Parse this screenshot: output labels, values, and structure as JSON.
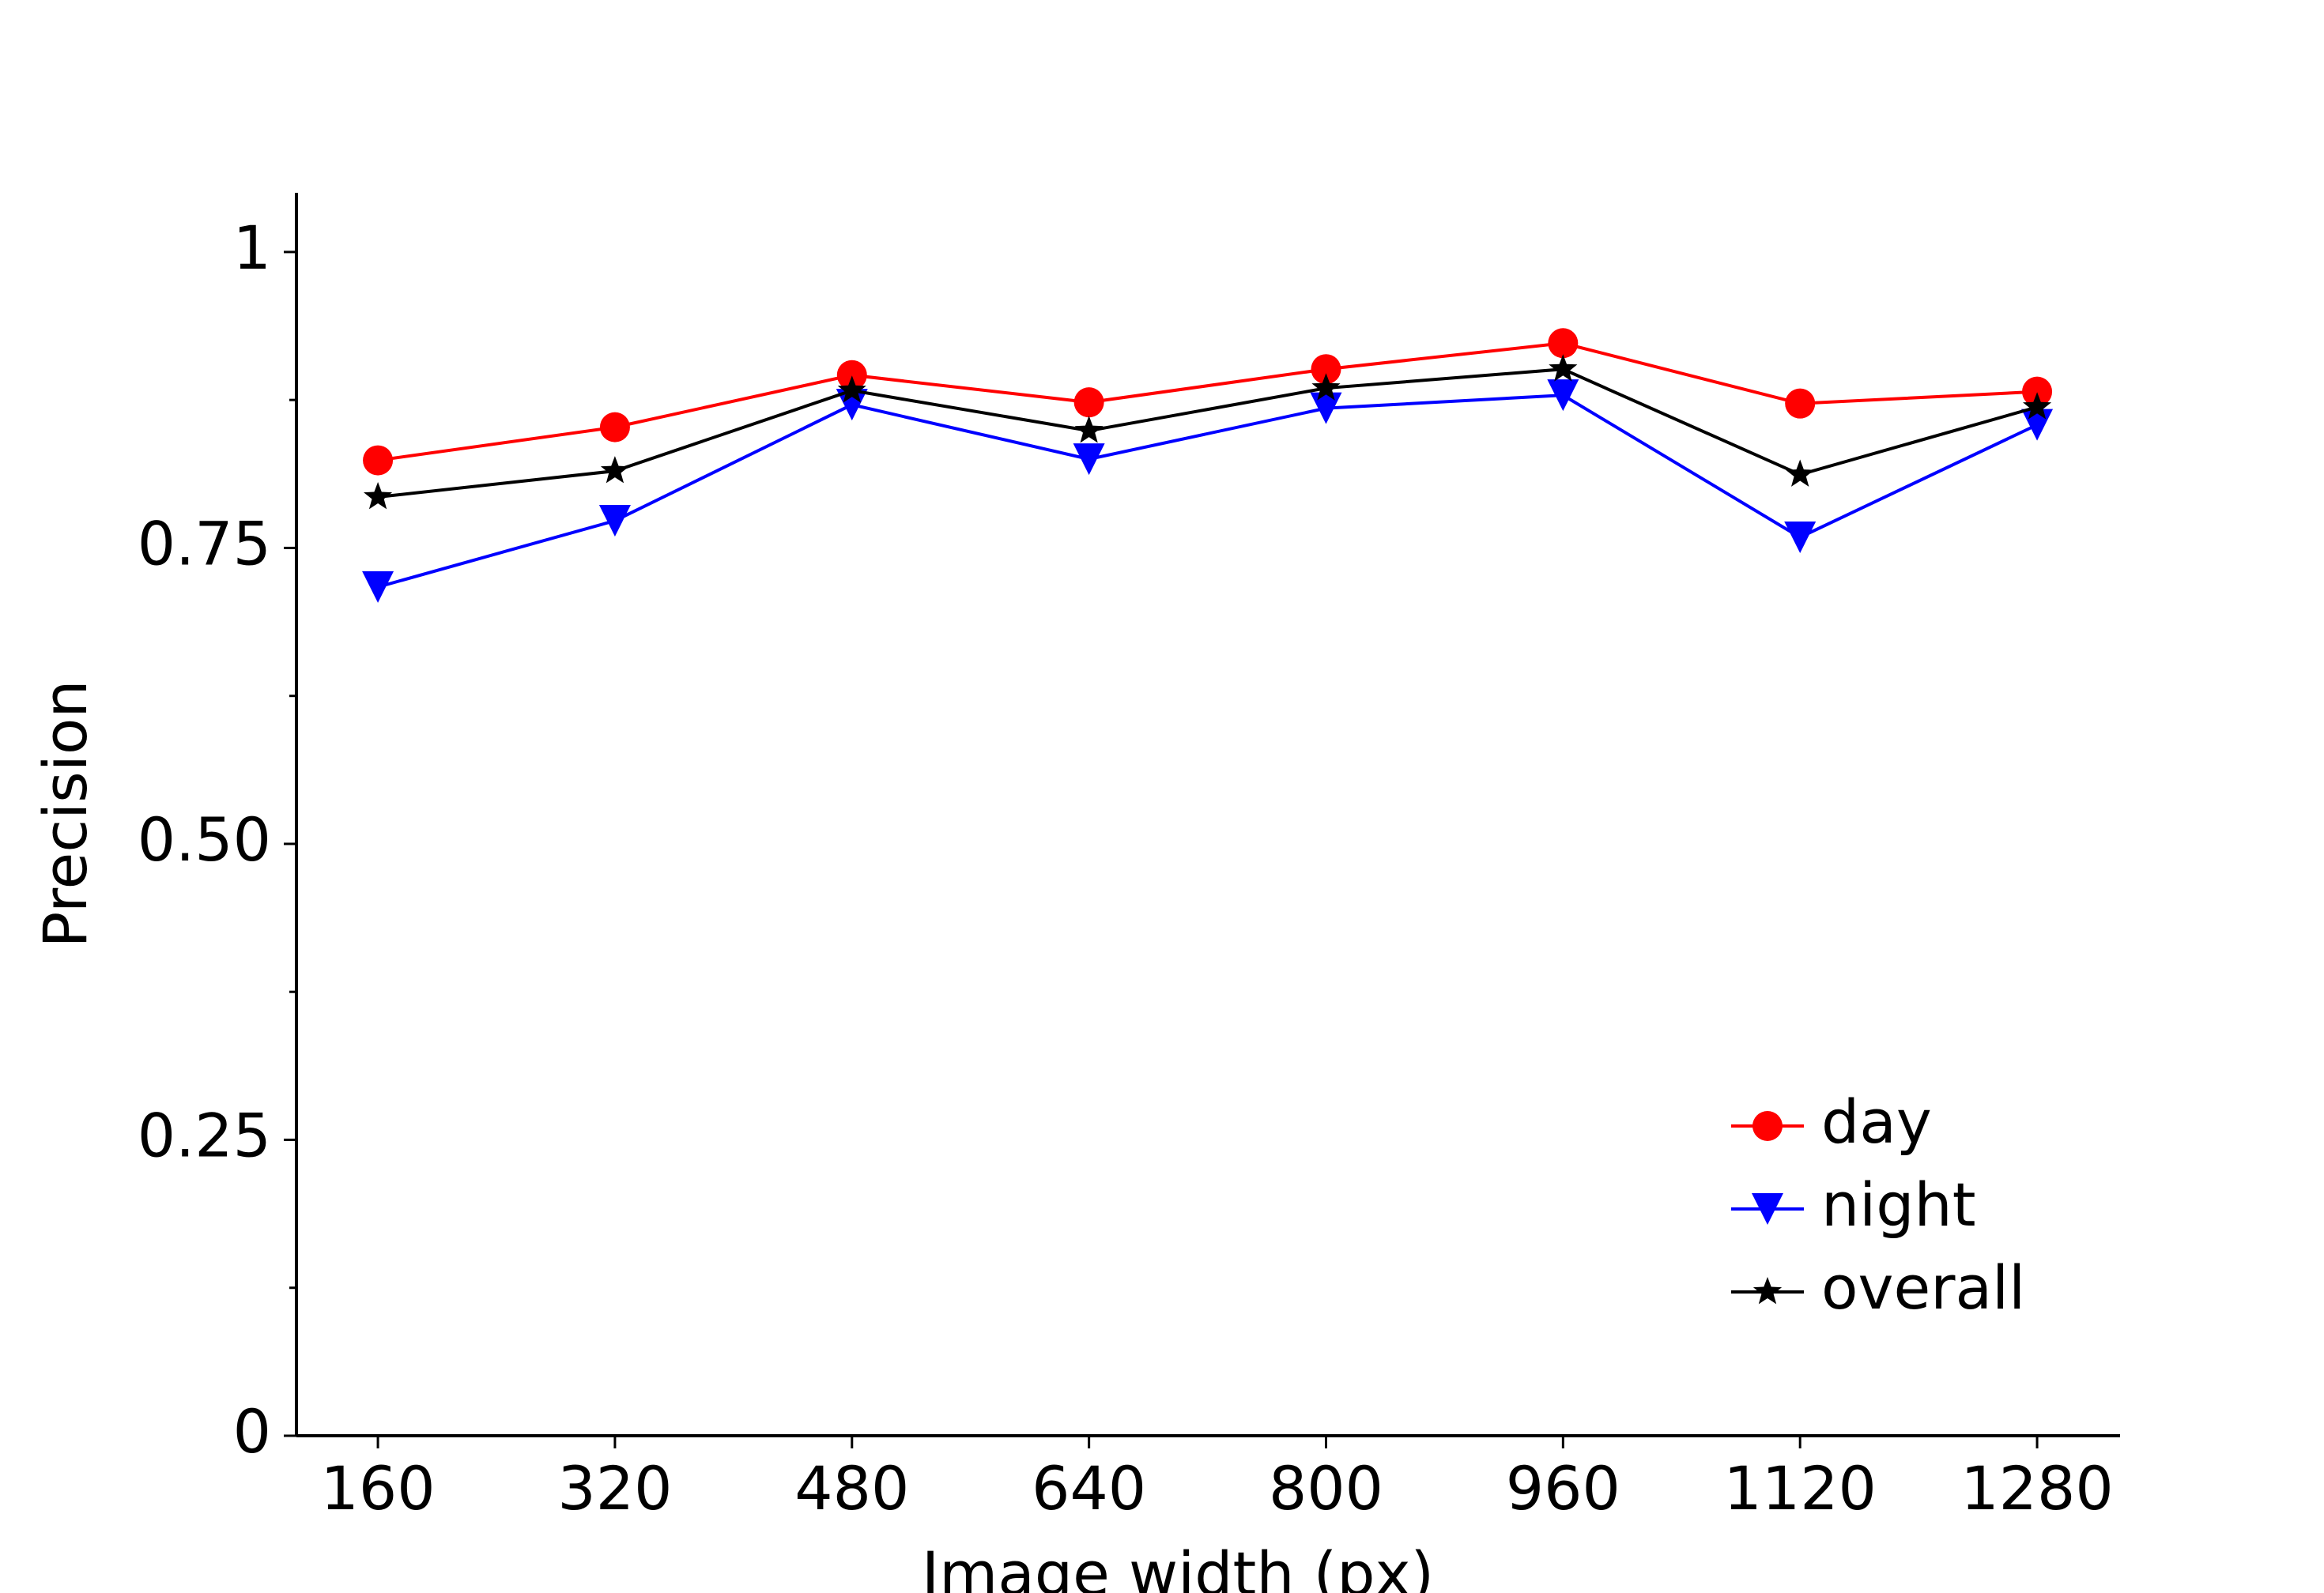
{
  "chart_data": {
    "type": "line",
    "x_label": "Image width (px)",
    "y_label": "Precision",
    "x": [
      160,
      320,
      480,
      640,
      800,
      960,
      1120,
      1280
    ],
    "series": [
      {
        "name": "day",
        "color": "#ff0000",
        "marker": "circle",
        "values": [
          0.824,
          0.852,
          0.896,
          0.873,
          0.901,
          0.923,
          0.872,
          0.882
        ]
      },
      {
        "name": "night",
        "color": "#0000ff",
        "marker": "triangle-down",
        "values": [
          0.717,
          0.773,
          0.871,
          0.825,
          0.868,
          0.879,
          0.759,
          0.854
        ]
      },
      {
        "name": "overall",
        "color": "#000000",
        "marker": "star",
        "values": [
          0.793,
          0.815,
          0.883,
          0.849,
          0.885,
          0.901,
          0.812,
          0.869
        ]
      }
    ],
    "xlim": [
      105,
      1336
    ],
    "ylim": [
      0,
      1.05
    ],
    "xticks": [
      160,
      320,
      480,
      640,
      800,
      960,
      1120,
      1280
    ],
    "yticks": [
      0,
      0.25,
      {
        "value": 0.5,
        "label": "0.50"
      },
      0.75,
      1
    ],
    "yminor_ticks": [
      0.125,
      0.375,
      0.625,
      0.875
    ],
    "legend": "lower right",
    "grid": false
  }
}
